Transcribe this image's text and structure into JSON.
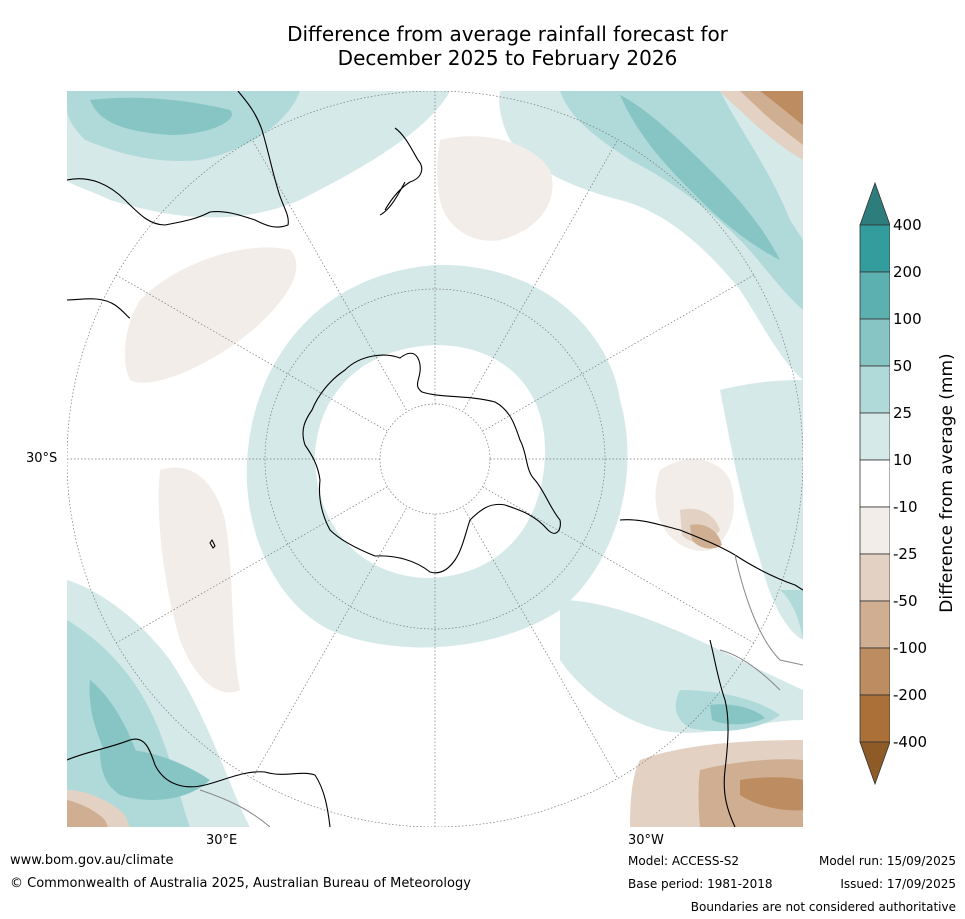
{
  "title": {
    "line1": "Difference from average rainfall forecast for",
    "line2": "December 2025 to February 2026"
  },
  "map": {
    "projection": "south-polar",
    "labels": {
      "lat_30s": "30°S",
      "lon_30e": "30°E",
      "lon_30w": "30°W"
    },
    "continents": [
      "Australia",
      "New Zealand",
      "Antarctica",
      "South America",
      "Africa"
    ]
  },
  "colorbar": {
    "title": "Difference from average (mm)",
    "ticks": [
      "400",
      "200",
      "100",
      "50",
      "25",
      "10",
      "-10",
      "-25",
      "-50",
      "-100",
      "-200",
      "-400"
    ],
    "colors": [
      "#2e7d7d",
      "#339c9c",
      "#5cb0b0",
      "#87c5c5",
      "#b0d9d9",
      "#d6e9e9",
      "#ffffff",
      "#f2ede8",
      "#e3d2c3",
      "#cfae91",
      "#bd8c60",
      "#aa7038",
      "#8e5a26"
    ]
  },
  "footer": {
    "url": "www.bom.gov.au/climate",
    "copyright": "© Commonwealth of Australia 2025, Australian Bureau of Meteorology",
    "model": "Model: ACCESS-S2",
    "base_period": "Base period: 1981-2018",
    "model_run": "Model run: 15/09/2025",
    "issued": "Issued: 17/09/2025",
    "disclaimer": "Boundaries are not considered authoritative"
  }
}
